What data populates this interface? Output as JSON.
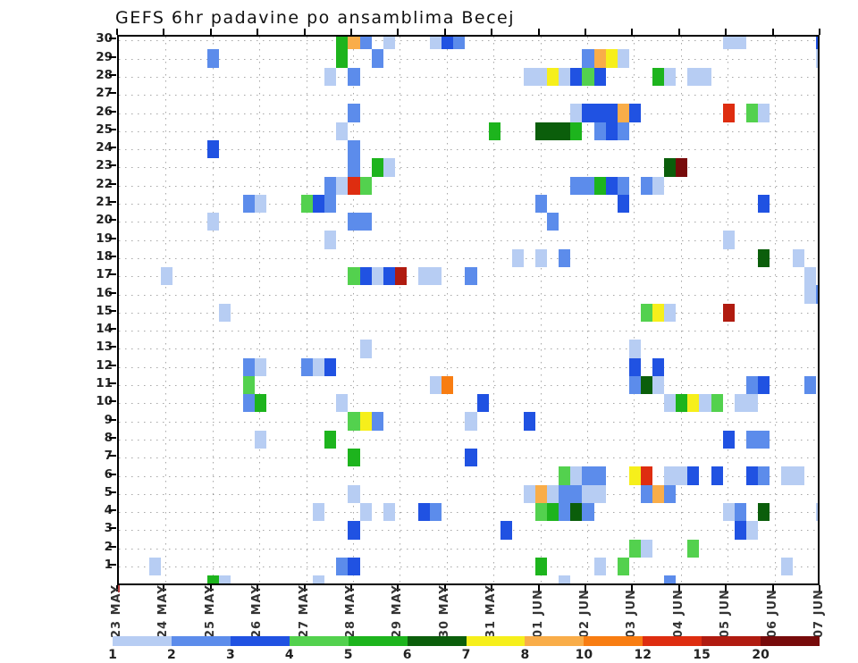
{
  "title": "GEFS 6hr padavine po ansamblima Becej",
  "chart_data": {
    "type": "heatmap",
    "title": "GEFS 6hr padavine po ansamblima Becej",
    "description_visible": "ensemble members 1-30 on y-axis vs 6-hour periods (23 MAY - 07 JUN) on x-axis; unlabeled control row below member 1; colorbar gives precipitation category",
    "xlabel": "",
    "ylabel": "",
    "grid": "dotted",
    "x_axis": {
      "tick_labels": [
        "23 MAY",
        "24 MAY",
        "25 MAY",
        "26 MAY",
        "27 MAY",
        "28 MAY",
        "29 MAY",
        "30 MAY",
        "31 MAY",
        "01 JUN",
        "02 JUN",
        "03 JUN",
        "04 JUN",
        "05 JUN",
        "06 JUN",
        "07 JUN"
      ],
      "periods_per_day": 4
    },
    "y_axis": {
      "tick_labels": [
        "30",
        "29",
        "28",
        "27",
        "26",
        "25",
        "24",
        "23",
        "22",
        "21",
        "20",
        "19",
        "18",
        "17",
        "16",
        "15",
        "14",
        "13",
        "12",
        "11",
        "10",
        "9",
        "8",
        "7",
        "6",
        "5",
        "4",
        "3",
        "2",
        "1"
      ]
    },
    "legend": {
      "position": "bottom",
      "boundary_labels": [
        "1",
        "2",
        "3",
        "4",
        "5",
        "6",
        "7",
        "8",
        "10",
        "12",
        "15",
        "20"
      ],
      "segment_color_keys": [
        "c1",
        "c2",
        "c3",
        "c4",
        "c5",
        "c6",
        "c7",
        "c8",
        "c10",
        "c12",
        "c15",
        "c20"
      ]
    },
    "colors": {
      "c1": "#b7cdf3",
      "c2": "#5c8ceb",
      "c3": "#2052e2",
      "c4": "#53d14e",
      "c5": "#1db41d",
      "c6": "#0b5e0b",
      "c7": "#f6ef1b",
      "c8": "#f9ad49",
      "c10": "#f87d12",
      "c12": "#de2d10",
      "c15": "#b01b10",
      "c20": "#770b0b"
    },
    "cells": [
      [
        30,
        19,
        "c5"
      ],
      [
        30,
        20,
        "c8"
      ],
      [
        30,
        21,
        "c2"
      ],
      [
        30,
        23,
        "c1"
      ],
      [
        30,
        27,
        "c1"
      ],
      [
        30,
        28,
        "c3"
      ],
      [
        30,
        29,
        "c2"
      ],
      [
        30,
        52,
        "c1"
      ],
      [
        30,
        53,
        "c1"
      ],
      [
        30,
        60,
        "c3"
      ],
      [
        29,
        8,
        "c2"
      ],
      [
        29,
        19,
        "c5"
      ],
      [
        29,
        22,
        "c2"
      ],
      [
        29,
        40,
        "c2"
      ],
      [
        29,
        41,
        "c8"
      ],
      [
        29,
        42,
        "c7"
      ],
      [
        29,
        43,
        "c1"
      ],
      [
        29,
        60,
        "c1"
      ],
      [
        28,
        18,
        "c1"
      ],
      [
        28,
        20,
        "c2"
      ],
      [
        28,
        35,
        "c1"
      ],
      [
        28,
        36,
        "c1"
      ],
      [
        28,
        37,
        "c7"
      ],
      [
        28,
        38,
        "c1"
      ],
      [
        28,
        39,
        "c3"
      ],
      [
        28,
        40,
        "c4"
      ],
      [
        28,
        41,
        "c3"
      ],
      [
        28,
        46,
        "c5"
      ],
      [
        28,
        47,
        "c1"
      ],
      [
        28,
        49,
        "c1"
      ],
      [
        28,
        50,
        "c1"
      ],
      [
        26,
        20,
        "c2"
      ],
      [
        26,
        39,
        "c1"
      ],
      [
        26,
        40,
        "c3"
      ],
      [
        26,
        41,
        "c3"
      ],
      [
        26,
        42,
        "c3"
      ],
      [
        26,
        43,
        "c8"
      ],
      [
        26,
        44,
        "c3"
      ],
      [
        26,
        52,
        "c12"
      ],
      [
        26,
        54,
        "c4"
      ],
      [
        26,
        55,
        "c1"
      ],
      [
        25,
        19,
        "c1"
      ],
      [
        25,
        32,
        "c5"
      ],
      [
        25,
        36,
        "c6"
      ],
      [
        25,
        37,
        "c6"
      ],
      [
        25,
        38,
        "c6"
      ],
      [
        25,
        39,
        "c5"
      ],
      [
        25,
        41,
        "c2"
      ],
      [
        25,
        42,
        "c3"
      ],
      [
        25,
        43,
        "c2"
      ],
      [
        24,
        8,
        "c3"
      ],
      [
        24,
        20,
        "c2"
      ],
      [
        23,
        20,
        "c2"
      ],
      [
        23,
        22,
        "c5"
      ],
      [
        23,
        23,
        "c1"
      ],
      [
        23,
        47,
        "c6"
      ],
      [
        23,
        48,
        "c20"
      ],
      [
        22,
        18,
        "c2"
      ],
      [
        22,
        19,
        "c1"
      ],
      [
        22,
        20,
        "c12"
      ],
      [
        22,
        21,
        "c4"
      ],
      [
        22,
        39,
        "c2"
      ],
      [
        22,
        40,
        "c2"
      ],
      [
        22,
        41,
        "c5"
      ],
      [
        22,
        42,
        "c3"
      ],
      [
        22,
        43,
        "c2"
      ],
      [
        22,
        45,
        "c2"
      ],
      [
        22,
        46,
        "c1"
      ],
      [
        21,
        11,
        "c2"
      ],
      [
        21,
        12,
        "c1"
      ],
      [
        21,
        16,
        "c4"
      ],
      [
        21,
        17,
        "c3"
      ],
      [
        21,
        18,
        "c2"
      ],
      [
        21,
        36,
        "c2"
      ],
      [
        21,
        43,
        "c3"
      ],
      [
        21,
        55,
        "c3"
      ],
      [
        20,
        8,
        "c1"
      ],
      [
        20,
        20,
        "c2"
      ],
      [
        20,
        21,
        "c2"
      ],
      [
        20,
        37,
        "c2"
      ],
      [
        19,
        18,
        "c1"
      ],
      [
        19,
        52,
        "c1"
      ],
      [
        18,
        34,
        "c1"
      ],
      [
        18,
        36,
        "c1"
      ],
      [
        18,
        38,
        "c2"
      ],
      [
        18,
        55,
        "c6"
      ],
      [
        18,
        58,
        "c1"
      ],
      [
        17,
        4,
        "c1"
      ],
      [
        17,
        20,
        "c4"
      ],
      [
        17,
        21,
        "c3"
      ],
      [
        17,
        22,
        "c1"
      ],
      [
        17,
        23,
        "c3"
      ],
      [
        17,
        24,
        "c15"
      ],
      [
        17,
        26,
        "c1"
      ],
      [
        17,
        27,
        "c1"
      ],
      [
        17,
        30,
        "c2"
      ],
      [
        17,
        59,
        "c1"
      ],
      [
        16,
        59,
        "c1"
      ],
      [
        16,
        60,
        "c2"
      ],
      [
        15,
        9,
        "c1"
      ],
      [
        15,
        45,
        "c4"
      ],
      [
        15,
        46,
        "c7"
      ],
      [
        15,
        47,
        "c1"
      ],
      [
        15,
        52,
        "c15"
      ],
      [
        13,
        21,
        "c1"
      ],
      [
        13,
        44,
        "c1"
      ],
      [
        12,
        11,
        "c2"
      ],
      [
        12,
        12,
        "c1"
      ],
      [
        12,
        16,
        "c2"
      ],
      [
        12,
        17,
        "c1"
      ],
      [
        12,
        18,
        "c3"
      ],
      [
        12,
        44,
        "c3"
      ],
      [
        12,
        46,
        "c3"
      ],
      [
        11,
        11,
        "c4"
      ],
      [
        11,
        27,
        "c1"
      ],
      [
        11,
        28,
        "c10"
      ],
      [
        11,
        44,
        "c2"
      ],
      [
        11,
        45,
        "c6"
      ],
      [
        11,
        46,
        "c1"
      ],
      [
        11,
        54,
        "c2"
      ],
      [
        11,
        55,
        "c3"
      ],
      [
        11,
        59,
        "c2"
      ],
      [
        10,
        11,
        "c2"
      ],
      [
        10,
        12,
        "c5"
      ],
      [
        10,
        19,
        "c1"
      ],
      [
        10,
        31,
        "c3"
      ],
      [
        10,
        47,
        "c1"
      ],
      [
        10,
        48,
        "c5"
      ],
      [
        10,
        49,
        "c7"
      ],
      [
        10,
        50,
        "c1"
      ],
      [
        10,
        51,
        "c4"
      ],
      [
        10,
        53,
        "c1"
      ],
      [
        10,
        54,
        "c1"
      ],
      [
        9,
        20,
        "c4"
      ],
      [
        9,
        21,
        "c7"
      ],
      [
        9,
        22,
        "c2"
      ],
      [
        9,
        30,
        "c1"
      ],
      [
        9,
        35,
        "c3"
      ],
      [
        8,
        12,
        "c1"
      ],
      [
        8,
        18,
        "c5"
      ],
      [
        8,
        52,
        "c3"
      ],
      [
        8,
        54,
        "c2"
      ],
      [
        8,
        55,
        "c2"
      ],
      [
        7,
        20,
        "c5"
      ],
      [
        7,
        30,
        "c3"
      ],
      [
        6,
        38,
        "c4"
      ],
      [
        6,
        39,
        "c1"
      ],
      [
        6,
        40,
        "c2"
      ],
      [
        6,
        41,
        "c2"
      ],
      [
        6,
        44,
        "c7"
      ],
      [
        6,
        45,
        "c12"
      ],
      [
        6,
        47,
        "c1"
      ],
      [
        6,
        48,
        "c1"
      ],
      [
        6,
        49,
        "c3"
      ],
      [
        6,
        51,
        "c3"
      ],
      [
        6,
        54,
        "c3"
      ],
      [
        6,
        55,
        "c2"
      ],
      [
        6,
        57,
        "c1"
      ],
      [
        6,
        58,
        "c1"
      ],
      [
        5,
        20,
        "c1"
      ],
      [
        5,
        35,
        "c1"
      ],
      [
        5,
        36,
        "c8"
      ],
      [
        5,
        37,
        "c1"
      ],
      [
        5,
        38,
        "c2"
      ],
      [
        5,
        39,
        "c2"
      ],
      [
        5,
        40,
        "c1"
      ],
      [
        5,
        41,
        "c1"
      ],
      [
        5,
        45,
        "c2"
      ],
      [
        5,
        46,
        "c8"
      ],
      [
        5,
        47,
        "c2"
      ],
      [
        4,
        17,
        "c1"
      ],
      [
        4,
        21,
        "c1"
      ],
      [
        4,
        23,
        "c1"
      ],
      [
        4,
        26,
        "c3"
      ],
      [
        4,
        27,
        "c2"
      ],
      [
        4,
        36,
        "c4"
      ],
      [
        4,
        37,
        "c5"
      ],
      [
        4,
        38,
        "c2"
      ],
      [
        4,
        39,
        "c6"
      ],
      [
        4,
        40,
        "c2"
      ],
      [
        4,
        52,
        "c1"
      ],
      [
        4,
        53,
        "c2"
      ],
      [
        4,
        55,
        "c6"
      ],
      [
        4,
        60,
        "c1"
      ],
      [
        3,
        20,
        "c3"
      ],
      [
        3,
        33,
        "c3"
      ],
      [
        3,
        53,
        "c3"
      ],
      [
        3,
        54,
        "c1"
      ],
      [
        2,
        44,
        "c4"
      ],
      [
        2,
        45,
        "c1"
      ],
      [
        2,
        49,
        "c4"
      ],
      [
        1,
        3,
        "c1"
      ],
      [
        1,
        19,
        "c2"
      ],
      [
        1,
        20,
        "c3"
      ],
      [
        1,
        36,
        "c5"
      ],
      [
        1,
        41,
        "c1"
      ],
      [
        1,
        43,
        "c4"
      ],
      [
        1,
        57,
        "c1"
      ],
      [
        0,
        8,
        "c5"
      ],
      [
        0,
        9,
        "c1"
      ],
      [
        0,
        17,
        "c1"
      ],
      [
        0,
        38,
        "c1"
      ],
      [
        0,
        47,
        "c2"
      ]
    ]
  }
}
